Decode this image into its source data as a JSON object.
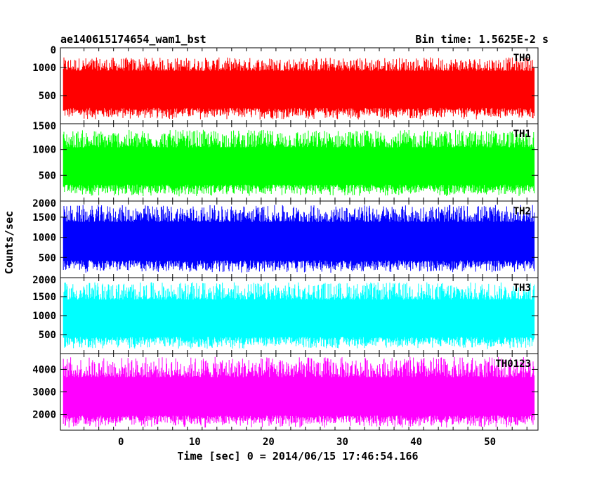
{
  "chart_data": {
    "type": "line",
    "title_left": "ae140615174654_wam1_bst",
    "title_right": "Bin time: 1.5625E-2 s",
    "xlabel": "Time [sec] 0 = 2014/06/15 17:46:54.166",
    "ylabel": "Counts/sec",
    "xlim": [
      -8.2,
      56.5
    ],
    "x_range_data": [
      -7.8,
      56.0
    ],
    "xticks": [
      0,
      10,
      20,
      30,
      40,
      50
    ],
    "panels": [
      {
        "name": "TH0",
        "color": "#ff0000",
        "ylim": [
          0,
          1350
        ],
        "yticks": [
          {
            "v": 500,
            "label": "500"
          },
          {
            "v": 1000,
            "label": "1000"
          }
        ],
        "edge_label": "0",
        "band": [
          70,
          1180
        ],
        "core": [
          280,
          940
        ]
      },
      {
        "name": "TH1",
        "color": "#00ff00",
        "ylim": [
          0,
          1500
        ],
        "yticks": [
          {
            "v": 500,
            "label": "500"
          },
          {
            "v": 1000,
            "label": "1000"
          }
        ],
        "edge_label": "1500",
        "band": [
          90,
          1380
        ],
        "core": [
          320,
          1040
        ]
      },
      {
        "name": "TH2",
        "color": "#0000ff",
        "ylim": [
          0,
          1900
        ],
        "yticks": [
          {
            "v": 500,
            "label": "500"
          },
          {
            "v": 1000,
            "label": "1000"
          },
          {
            "v": 1500,
            "label": "1500"
          }
        ],
        "edge_label": "2000",
        "band": [
          120,
          1800
        ],
        "core": [
          430,
          1380
        ]
      },
      {
        "name": "TH3",
        "color": "#00ffff",
        "ylim": [
          0,
          2000
        ],
        "yticks": [
          {
            "v": 500,
            "label": "500"
          },
          {
            "v": 1000,
            "label": "1000"
          },
          {
            "v": 1500,
            "label": "1500"
          }
        ],
        "edge_label": "2000",
        "band": [
          120,
          1880
        ],
        "core": [
          440,
          1420
        ]
      },
      {
        "name": "TH0123",
        "color": "#ff00ff",
        "ylim": [
          1300,
          4700
        ],
        "yticks": [
          {
            "v": 2000,
            "label": "2000"
          },
          {
            "v": 3000,
            "label": "3000"
          },
          {
            "v": 4000,
            "label": "4000"
          }
        ],
        "edge_label": "",
        "band": [
          1400,
          4550
        ],
        "core": [
          1950,
          3650
        ]
      }
    ]
  }
}
